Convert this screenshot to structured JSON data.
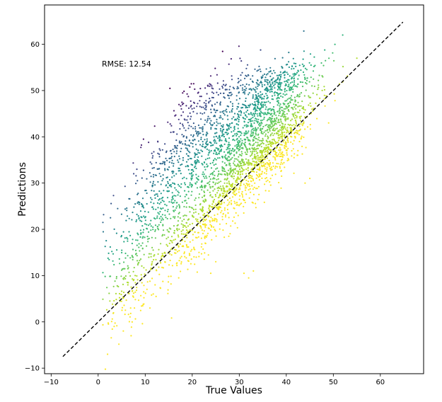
{
  "chart_data": {
    "type": "scatter",
    "title": "",
    "xlabel": "True Values",
    "ylabel": "Predictions",
    "xlim": [
      -11.4,
      69.2
    ],
    "ylim": [
      -11.2,
      68.5
    ],
    "xticks": [
      -10,
      0,
      10,
      20,
      30,
      40,
      50,
      60
    ],
    "yticks": [
      -10,
      0,
      10,
      20,
      30,
      40,
      50,
      60
    ],
    "grid": false,
    "colormap": "viridis",
    "color_encodes": "prediction error (Predictions - True Values)",
    "annotation": "RMSE: 12.54",
    "reference_line": {
      "style": "dashed",
      "color": "#000000",
      "from": [
        -7.5,
        -7.5
      ],
      "to": [
        64.8,
        64.8
      ]
    },
    "point_clusters": [
      {
        "x_center": 28,
        "x_spread": 8,
        "offset_mean": 2,
        "offset_spread": 4,
        "count": 700
      },
      {
        "x_center": 37,
        "x_spread": 5,
        "offset_mean": 1,
        "offset_spread": 4,
        "count": 550
      },
      {
        "x_center": 30,
        "x_spread": 7,
        "offset_mean": 12,
        "offset_spread": 5,
        "count": 550
      },
      {
        "x_center": 36,
        "x_spread": 5,
        "offset_mean": 12,
        "offset_spread": 5,
        "count": 400
      },
      {
        "x_center": 22,
        "x_spread": 6,
        "offset_mean": 20,
        "offset_spread": 6,
        "count": 380
      },
      {
        "x_center": 14,
        "x_spread": 5,
        "offset_mean": 14,
        "offset_spread": 7,
        "count": 300
      },
      {
        "x_center": 8,
        "x_spread": 3,
        "offset_mean": 10,
        "offset_spread": 6,
        "count": 120
      },
      {
        "x_center": 5,
        "x_spread": 2,
        "offset_mean": 0,
        "offset_spread": 4,
        "count": 70
      },
      {
        "x_center": 20,
        "x_spread": 6,
        "offset_mean": -4,
        "offset_spread": 3,
        "count": 120
      }
    ],
    "outliers": [
      {
        "x": 31,
        "y": 10.5
      },
      {
        "x": 33,
        "y": 11
      },
      {
        "x": 32,
        "y": 9.5
      },
      {
        "x": 25,
        "y": 13
      },
      {
        "x": 11,
        "y": 3
      },
      {
        "x": 7,
        "y": -3
      },
      {
        "x": 2,
        "y": -7
      },
      {
        "x": 44,
        "y": 30
      },
      {
        "x": 45,
        "y": 31
      },
      {
        "x": 49,
        "y": 43
      },
      {
        "x": 55,
        "y": 57
      },
      {
        "x": 52,
        "y": 62
      }
    ]
  }
}
